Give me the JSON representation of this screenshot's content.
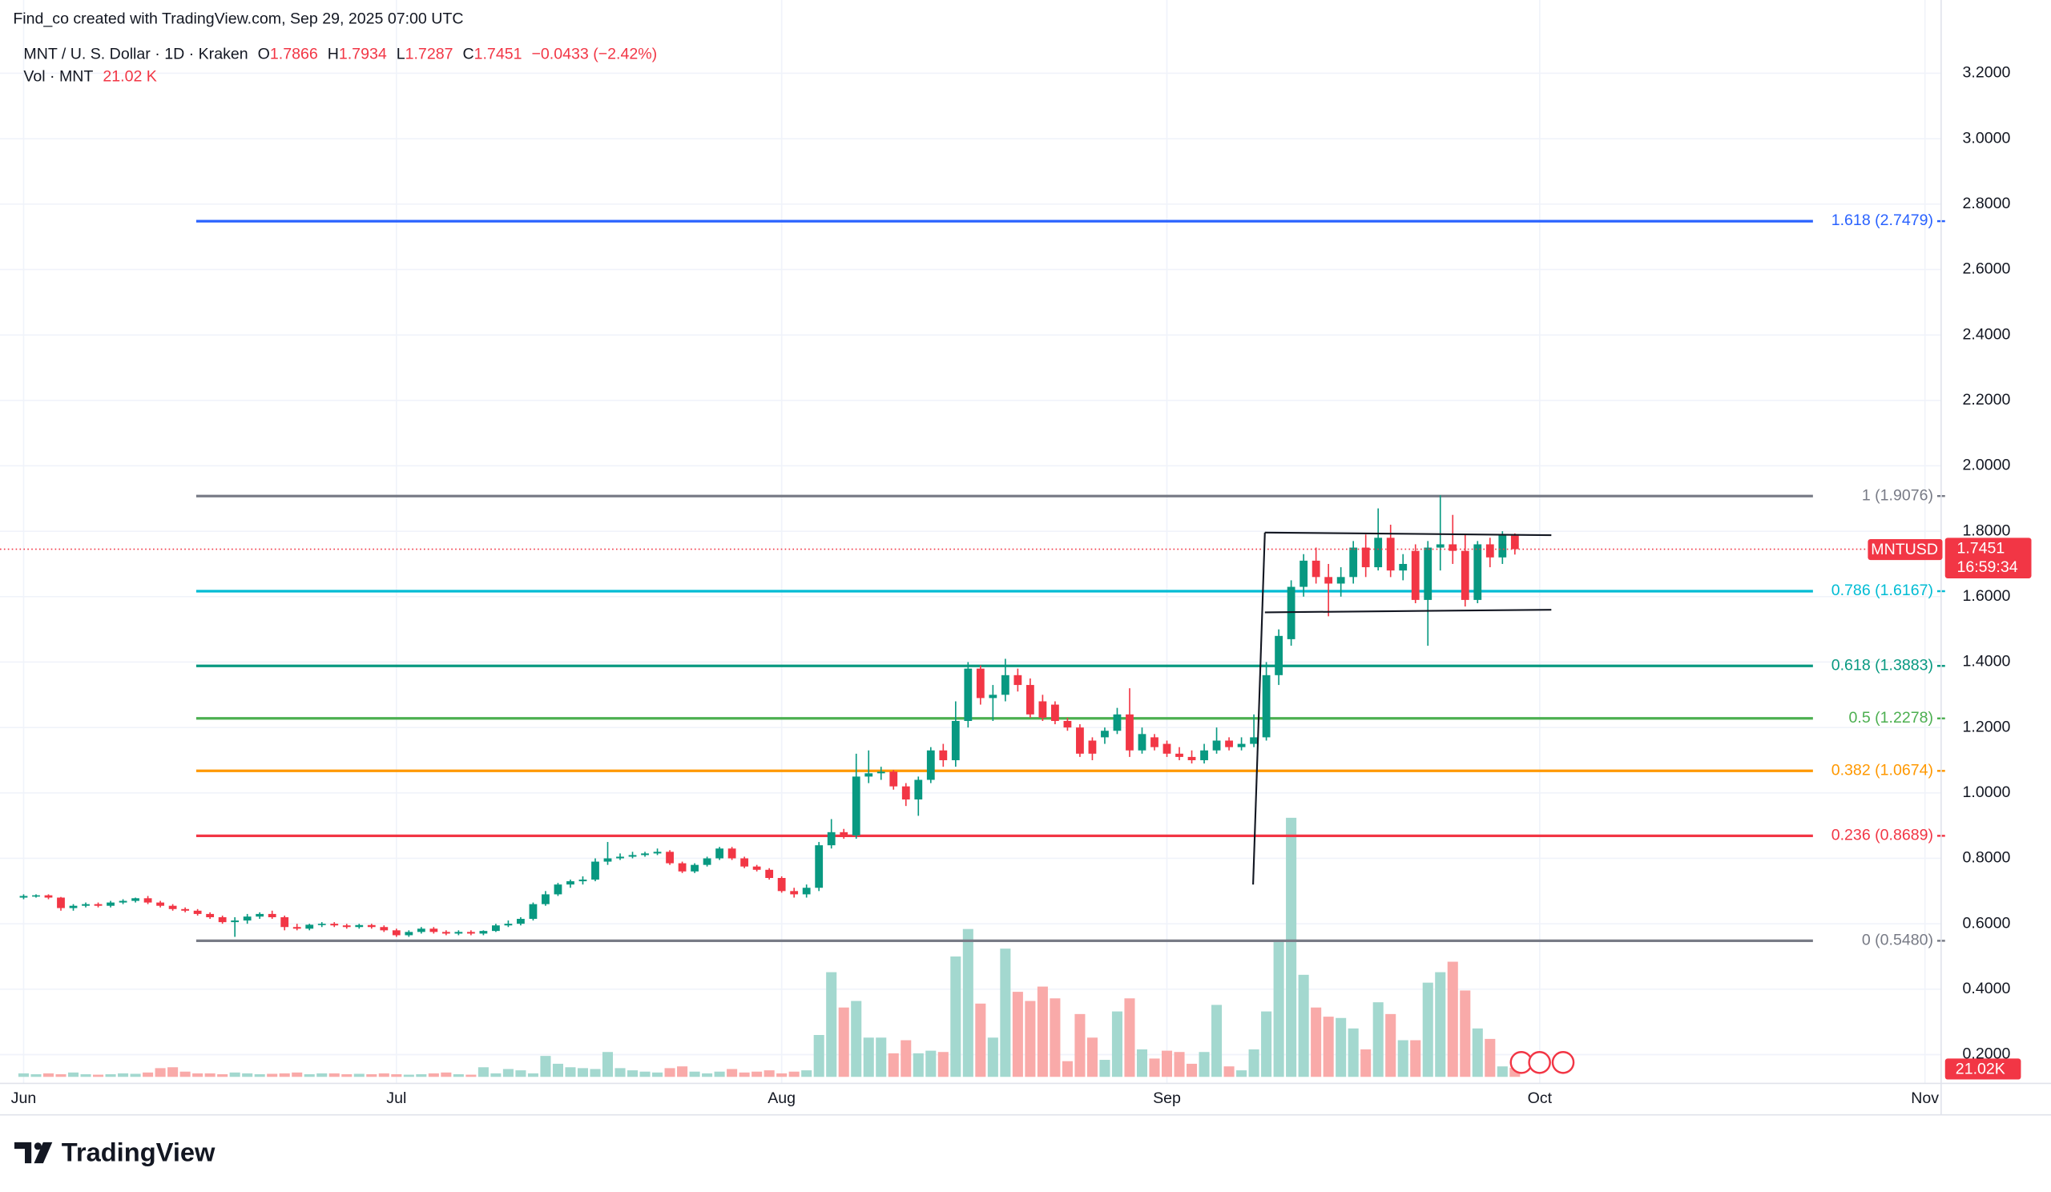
{
  "chart_data": {
    "type": "candlestick",
    "title": "Find_co created with TradingView.com, Sep 29, 2025 07:00 UTC",
    "legend": {
      "name": "MNT / U. S. Dollar · 1D · Kraken",
      "items": [
        {
          "key": "O",
          "value": "1.7866"
        },
        {
          "key": "H",
          "value": "1.7934"
        },
        {
          "key": "L",
          "value": "1.7287"
        },
        {
          "key": "C",
          "value": "1.7451"
        }
      ],
      "change": "−0.0433 (−2.42%)",
      "volume_name": "Vol · MNT",
      "volume_value": "21.02 K"
    },
    "price_tag": {
      "symbol": "MNTUSD",
      "price": "1.7451",
      "countdown": "16:59:34"
    },
    "volume_tag": "21.02K",
    "brand": "TradingView",
    "up_color": "#089981",
    "down_color": "#f23645",
    "volume_up_color": "#a3d8cf",
    "volume_down_color": "#f9aaa9",
    "ylim": [
      0.132,
      3.312
    ],
    "volume_lim": [
      0,
      600
    ],
    "xlim": [
      -1.9,
      154.3
    ],
    "xticks": [
      {
        "value": 0,
        "label": "Jun"
      },
      {
        "value": 30,
        "label": "Jul"
      },
      {
        "value": 61,
        "label": "Aug"
      },
      {
        "value": 92,
        "label": "Sep"
      },
      {
        "value": 122,
        "label": "Oct"
      },
      {
        "value": 153,
        "label": "Nov"
      }
    ],
    "yticks": [
      {
        "value": 0.2,
        "label": "0.2000"
      },
      {
        "value": 0.4,
        "label": "0.4000"
      },
      {
        "value": 0.6,
        "label": "0.6000"
      },
      {
        "value": 0.8,
        "label": "0.8000"
      },
      {
        "value": 1.0,
        "label": "1.0000"
      },
      {
        "value": 1.2,
        "label": "1.2000"
      },
      {
        "value": 1.4,
        "label": "1.4000"
      },
      {
        "value": 1.6,
        "label": "1.6000"
      },
      {
        "value": 1.8,
        "label": "1.8000"
      },
      {
        "value": 2.0,
        "label": "2.0000"
      },
      {
        "value": 2.2,
        "label": "2.2000"
      },
      {
        "value": 2.4,
        "label": "2.4000"
      },
      {
        "value": 2.6,
        "label": "2.6000"
      },
      {
        "value": 2.8,
        "label": "2.8000"
      },
      {
        "value": 3.0,
        "label": "3.0000"
      },
      {
        "value": 3.2,
        "label": "3.2000"
      }
    ],
    "grid": true,
    "fib_levels": [
      {
        "value": 2.7479,
        "label": "1.618 (2.7479)",
        "color": "#2962ff"
      },
      {
        "value": 1.9076,
        "label": "1 (1.9076)",
        "color": "#787b86"
      },
      {
        "value": 1.6167,
        "label": "0.786 (1.6167)",
        "color": "#00bcd4"
      },
      {
        "value": 1.3883,
        "label": "0.618 (1.3883)",
        "color": "#089981"
      },
      {
        "value": 1.2278,
        "label": "0.5 (1.2278)",
        "color": "#4caf50"
      },
      {
        "value": 1.0674,
        "label": "0.382 (1.0674)",
        "color": "#ff9800"
      },
      {
        "value": 0.8689,
        "label": "0.236 (0.8689)",
        "color": "#f23645"
      },
      {
        "value": 0.548,
        "label": "0 (0.5480)",
        "color": "#787b86"
      }
    ],
    "ohlc": [
      [
        0.68,
        0.69,
        0.675,
        0.685
      ],
      [
        0.685,
        0.69,
        0.68,
        0.687
      ],
      [
        0.687,
        0.69,
        0.675,
        0.68
      ],
      [
        0.68,
        0.682,
        0.64,
        0.648
      ],
      [
        0.648,
        0.66,
        0.64,
        0.655
      ],
      [
        0.655,
        0.665,
        0.65,
        0.66
      ],
      [
        0.66,
        0.665,
        0.65,
        0.655
      ],
      [
        0.655,
        0.67,
        0.65,
        0.665
      ],
      [
        0.665,
        0.675,
        0.66,
        0.67
      ],
      [
        0.67,
        0.68,
        0.665,
        0.678
      ],
      [
        0.678,
        0.685,
        0.66,
        0.665
      ],
      [
        0.665,
        0.67,
        0.65,
        0.655
      ],
      [
        0.655,
        0.66,
        0.64,
        0.645
      ],
      [
        0.645,
        0.65,
        0.635,
        0.64
      ],
      [
        0.64,
        0.645,
        0.625,
        0.63
      ],
      [
        0.63,
        0.635,
        0.615,
        0.62
      ],
      [
        0.62,
        0.625,
        0.6,
        0.605
      ],
      [
        0.605,
        0.62,
        0.56,
        0.61
      ],
      [
        0.61,
        0.63,
        0.6,
        0.622
      ],
      [
        0.622,
        0.635,
        0.615,
        0.63
      ],
      [
        0.63,
        0.64,
        0.615,
        0.62
      ],
      [
        0.62,
        0.625,
        0.58,
        0.59
      ],
      [
        0.59,
        0.6,
        0.58,
        0.585
      ],
      [
        0.585,
        0.6,
        0.58,
        0.597
      ],
      [
        0.597,
        0.605,
        0.59,
        0.6
      ],
      [
        0.6,
        0.605,
        0.59,
        0.595
      ],
      [
        0.595,
        0.6,
        0.585,
        0.59
      ],
      [
        0.59,
        0.6,
        0.585,
        0.596
      ],
      [
        0.596,
        0.6,
        0.585,
        0.59
      ],
      [
        0.59,
        0.595,
        0.575,
        0.58
      ],
      [
        0.58,
        0.585,
        0.56,
        0.565
      ],
      [
        0.565,
        0.58,
        0.56,
        0.575
      ],
      [
        0.575,
        0.59,
        0.57,
        0.585
      ],
      [
        0.585,
        0.59,
        0.57,
        0.575
      ],
      [
        0.575,
        0.58,
        0.565,
        0.57
      ],
      [
        0.57,
        0.58,
        0.565,
        0.575
      ],
      [
        0.575,
        0.58,
        0.565,
        0.57
      ],
      [
        0.57,
        0.58,
        0.565,
        0.578
      ],
      [
        0.578,
        0.6,
        0.575,
        0.595
      ],
      [
        0.595,
        0.61,
        0.59,
        0.6
      ],
      [
        0.6,
        0.62,
        0.595,
        0.615
      ],
      [
        0.615,
        0.665,
        0.61,
        0.66
      ],
      [
        0.66,
        0.7,
        0.655,
        0.69
      ],
      [
        0.69,
        0.725,
        0.685,
        0.72
      ],
      [
        0.72,
        0.735,
        0.71,
        0.73
      ],
      [
        0.73,
        0.745,
        0.72,
        0.735
      ],
      [
        0.735,
        0.8,
        0.73,
        0.79
      ],
      [
        0.79,
        0.85,
        0.78,
        0.8
      ],
      [
        0.8,
        0.815,
        0.795,
        0.805
      ],
      [
        0.805,
        0.82,
        0.8,
        0.81
      ],
      [
        0.81,
        0.82,
        0.805,
        0.815
      ],
      [
        0.815,
        0.83,
        0.81,
        0.82
      ],
      [
        0.82,
        0.825,
        0.78,
        0.785
      ],
      [
        0.785,
        0.79,
        0.755,
        0.76
      ],
      [
        0.76,
        0.785,
        0.755,
        0.78
      ],
      [
        0.78,
        0.805,
        0.775,
        0.8
      ],
      [
        0.8,
        0.835,
        0.795,
        0.83
      ],
      [
        0.83,
        0.835,
        0.795,
        0.8
      ],
      [
        0.8,
        0.805,
        0.77,
        0.775
      ],
      [
        0.775,
        0.78,
        0.76,
        0.765
      ],
      [
        0.765,
        0.77,
        0.735,
        0.74
      ],
      [
        0.74,
        0.745,
        0.695,
        0.7
      ],
      [
        0.7,
        0.71,
        0.68,
        0.69
      ],
      [
        0.69,
        0.72,
        0.68,
        0.71
      ],
      [
        0.71,
        0.85,
        0.7,
        0.84
      ],
      [
        0.84,
        0.92,
        0.83,
        0.88
      ],
      [
        0.88,
        0.89,
        0.86,
        0.87
      ],
      [
        0.87,
        1.12,
        0.86,
        1.05
      ],
      [
        1.05,
        1.13,
        1.03,
        1.06
      ],
      [
        1.06,
        1.08,
        1.04,
        1.065
      ],
      [
        1.065,
        1.07,
        1.01,
        1.02
      ],
      [
        1.02,
        1.03,
        0.96,
        0.98
      ],
      [
        0.98,
        1.05,
        0.93,
        1.04
      ],
      [
        1.04,
        1.14,
        1.03,
        1.13
      ],
      [
        1.13,
        1.15,
        1.08,
        1.1
      ],
      [
        1.1,
        1.28,
        1.08,
        1.22
      ],
      [
        1.22,
        1.4,
        1.2,
        1.38
      ],
      [
        1.38,
        1.39,
        1.27,
        1.29
      ],
      [
        1.29,
        1.33,
        1.22,
        1.3
      ],
      [
        1.3,
        1.41,
        1.28,
        1.36
      ],
      [
        1.36,
        1.38,
        1.31,
        1.33
      ],
      [
        1.33,
        1.35,
        1.23,
        1.24
      ],
      [
        1.28,
        1.3,
        1.22,
        1.23
      ],
      [
        1.27,
        1.28,
        1.21,
        1.22
      ],
      [
        1.22,
        1.23,
        1.19,
        1.2
      ],
      [
        1.2,
        1.21,
        1.11,
        1.12
      ],
      [
        1.16,
        1.17,
        1.1,
        1.12
      ],
      [
        1.17,
        1.2,
        1.15,
        1.19
      ],
      [
        1.19,
        1.26,
        1.18,
        1.24
      ],
      [
        1.24,
        1.32,
        1.11,
        1.13
      ],
      [
        1.13,
        1.2,
        1.12,
        1.18
      ],
      [
        1.17,
        1.18,
        1.13,
        1.14
      ],
      [
        1.15,
        1.16,
        1.11,
        1.12
      ],
      [
        1.12,
        1.14,
        1.1,
        1.11
      ],
      [
        1.11,
        1.13,
        1.09,
        1.1
      ],
      [
        1.1,
        1.15,
        1.09,
        1.13
      ],
      [
        1.13,
        1.2,
        1.12,
        1.16
      ],
      [
        1.16,
        1.17,
        1.13,
        1.14
      ],
      [
        1.14,
        1.17,
        1.13,
        1.15
      ],
      [
        1.15,
        1.24,
        1.14,
        1.17
      ],
      [
        1.17,
        1.4,
        1.16,
        1.36
      ],
      [
        1.36,
        1.5,
        1.33,
        1.48
      ],
      [
        1.47,
        1.65,
        1.45,
        1.63
      ],
      [
        1.63,
        1.73,
        1.6,
        1.71
      ],
      [
        1.71,
        1.75,
        1.64,
        1.66
      ],
      [
        1.66,
        1.7,
        1.54,
        1.64
      ],
      [
        1.64,
        1.69,
        1.6,
        1.66
      ],
      [
        1.66,
        1.77,
        1.64,
        1.75
      ],
      [
        1.75,
        1.79,
        1.66,
        1.69
      ],
      [
        1.69,
        1.87,
        1.68,
        1.78
      ],
      [
        1.78,
        1.82,
        1.66,
        1.68
      ],
      [
        1.68,
        1.73,
        1.65,
        1.7
      ],
      [
        1.74,
        1.76,
        1.58,
        1.59
      ],
      [
        1.59,
        1.77,
        1.45,
        1.75
      ],
      [
        1.75,
        1.91,
        1.68,
        1.76
      ],
      [
        1.76,
        1.85,
        1.7,
        1.74
      ],
      [
        1.74,
        1.79,
        1.57,
        1.59
      ],
      [
        1.59,
        1.77,
        1.58,
        1.76
      ],
      [
        1.76,
        1.78,
        1.69,
        1.72
      ],
      [
        1.72,
        1.8,
        1.7,
        1.79
      ],
      [
        1.7866,
        1.7934,
        1.7287,
        1.7451
      ]
    ],
    "volume": [
      8,
      6,
      8,
      6,
      10,
      6,
      5,
      6,
      8,
      7,
      10,
      20,
      22,
      12,
      8,
      8,
      6,
      10,
      8,
      6,
      7,
      8,
      10,
      6,
      8,
      8,
      6,
      7,
      6,
      8,
      6,
      5,
      6,
      8,
      10,
      6,
      5,
      22,
      8,
      18,
      15,
      8,
      48,
      30,
      22,
      20,
      18,
      57,
      20,
      15,
      12,
      10,
      20,
      24,
      12,
      8,
      12,
      18,
      10,
      12,
      15,
      8,
      12,
      15,
      96,
      240,
      159,
      174,
      90,
      90,
      54,
      84,
      54,
      60,
      57,
      276,
      339,
      168,
      90,
      294,
      195,
      174,
      207,
      180,
      36,
      144,
      90,
      39,
      150,
      180,
      63,
      42,
      60,
      57,
      30,
      57,
      165,
      24,
      15,
      63,
      150,
      309,
      594,
      234,
      159,
      138,
      135,
      111,
      63,
      171,
      144,
      84,
      84,
      216,
      240,
      264,
      198,
      111,
      87,
      24,
      21.02
    ]
  }
}
